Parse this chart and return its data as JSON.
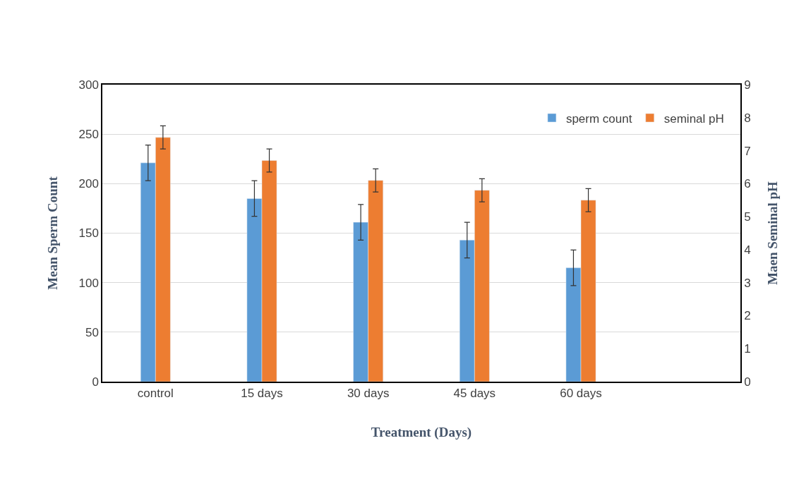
{
  "chart_data": {
    "type": "bar",
    "xlabel": "Treatment (Days)",
    "ylabel": "Mean Sperm Count",
    "y2label": "Maen Seminal pH",
    "categories": [
      "control",
      "15 days",
      "30 days",
      "45 days",
      "60 days",
      null
    ],
    "series": [
      {
        "name": "sperm count",
        "color": "#5b9bd5",
        "values": [
          221,
          185,
          161,
          143,
          115,
          null
        ],
        "errors": [
          18,
          18,
          18,
          18,
          18,
          null
        ]
      },
      {
        "name": "seminal pH",
        "color": "#ed7d31",
        "axis": "y2",
        "values": [
          7.4,
          6.7,
          6.1,
          5.8,
          5.5,
          null
        ],
        "errors": [
          0.35,
          0.35,
          0.35,
          0.35,
          0.35,
          null
        ]
      }
    ],
    "ylim": [
      0,
      300
    ],
    "yticks": [
      0,
      50,
      100,
      150,
      200,
      250,
      300
    ],
    "y2lim": [
      0,
      9
    ],
    "y2ticks": [
      0,
      1,
      2,
      3,
      4,
      5,
      6,
      7,
      8,
      9
    ],
    "grid": "y",
    "legend": "top right"
  }
}
